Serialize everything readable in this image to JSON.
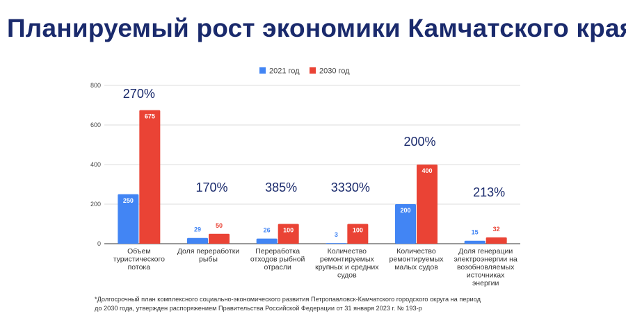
{
  "title": "Планируемый рост экономики Камчатского края",
  "chart_data": {
    "type": "bar",
    "categories": [
      [
        "Объем",
        "туристического",
        "потока"
      ],
      [
        "Доля переработки",
        "рыбы"
      ],
      [
        "Переработка",
        "отходов рыбной",
        "отрасли"
      ],
      [
        "Количество",
        "ремонтируемых",
        "крупных и средних",
        "судов"
      ],
      [
        "Количество",
        "ремонтируемых",
        "малых судов"
      ],
      [
        "Доля генерации",
        "электроэнергии на",
        "возобновляемых",
        "источниках",
        "энергии"
      ]
    ],
    "series": [
      {
        "name": "2021 год",
        "color": "#4285f4",
        "values": [
          250,
          29,
          26,
          3,
          200,
          15
        ]
      },
      {
        "name": "2030 год",
        "color": "#ea4335",
        "values": [
          675,
          50,
          100,
          100,
          400,
          32
        ]
      }
    ],
    "growth_labels": [
      "270%",
      "170%",
      "385%",
      "3330%",
      "200%",
      "213%"
    ],
    "yticks": [
      0,
      200,
      400,
      600,
      800
    ],
    "ylim": [
      0,
      800
    ],
    "grid": true,
    "legend": "top"
  },
  "footnote": [
    "*Долгосрочный план комплексного социально-экономического развития Петропавловск-Камчатского городского округа на период",
    "до 2030 года, утвержден распоряжением Правительства Российской Федерации от 31 января 2023 г. № 193-р"
  ]
}
